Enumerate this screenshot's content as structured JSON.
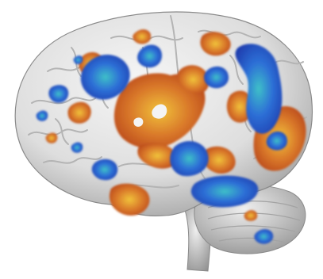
{
  "image": {
    "subject": "brain-activation-render",
    "colors": {
      "background": "#ffffff",
      "cortex_light": "#ececec",
      "cortex_mid": "#cfcfcf",
      "cortex_dark": "#8f8f8f",
      "activation_hot_outer": "#b8461a",
      "activation_hot_mid": "#d9782a",
      "activation_hot_core": "#f0c23a",
      "activation_cool_outer": "#1f3fb0",
      "activation_cool_mid": "#2d6fd6",
      "activation_cool_core": "#3ec0c8"
    }
  }
}
